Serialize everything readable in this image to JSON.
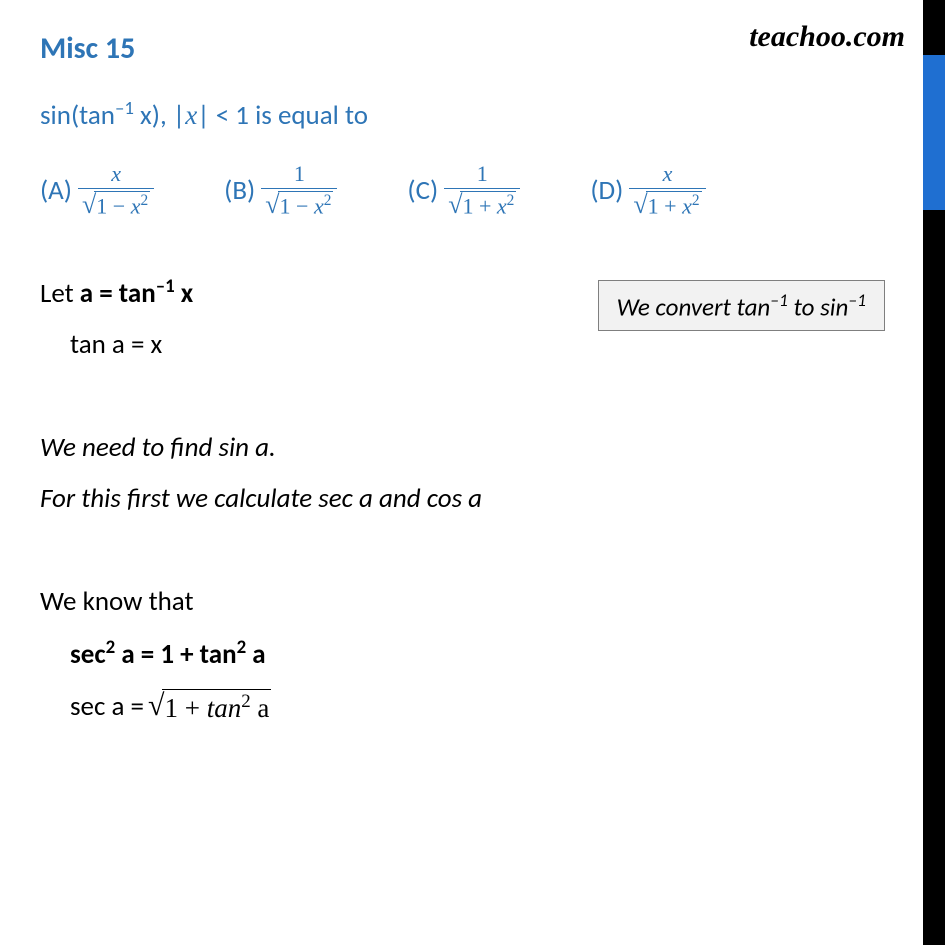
{
  "watermark": "teachoo.com",
  "title": "Misc  15",
  "question_prefix": "sin(tan",
  "question_sup1": "–1",
  "question_mid": " x), |",
  "question_var": "x",
  "question_suffix": "| < 1 is equal to",
  "options": {
    "a_label": "(A)",
    "a_num": "x",
    "a_den_left": "1 − ",
    "a_den_var": "x",
    "a_den_sup": "2",
    "b_label": "(B)",
    "b_num": "1",
    "b_den_left": "1 − ",
    "b_den_var": "x",
    "b_den_sup": "2",
    "c_label": "(C)",
    "c_num": "1",
    "c_den_left": "1 + ",
    "c_den_var": "x",
    "c_den_sup": "2",
    "d_label": "(D)",
    "d_num": "x",
    "d_den_left": "1 + ",
    "d_den_var": "x",
    "d_den_sup": "2"
  },
  "hint_prefix": "We convert tan",
  "hint_sup1": "–1",
  "hint_mid": " to  sin",
  "hint_sup2": "–1",
  "line1_prefix": "Let ",
  "line1_bold_a": "a = tan",
  "line1_sup": "–1",
  "line1_bold_x": " x",
  "line2": "tan a = x",
  "line3": "We need to find sin a.",
  "line4": "For this first we calculate sec a and cos a",
  "line5": "We know that",
  "line6_prefix": "sec",
  "line6_sup1": "2",
  "line6_mid": " a = 1 + tan",
  "line6_sup2": "2",
  "line6_suffix": " a",
  "line7_prefix": "sec a = ",
  "line7_sqrt_left": "1 + ",
  "line7_sqrt_var": "tan",
  "line7_sqrt_sup": "2",
  "line7_sqrt_suffix": " a",
  "colors": {
    "title": "#2e75b6",
    "text": "#000000",
    "sidebar_black": "#000000",
    "sidebar_blue": "#1f6fd1",
    "hint_bg": "#f2f2f2",
    "hint_border": "#7f7f7f"
  }
}
